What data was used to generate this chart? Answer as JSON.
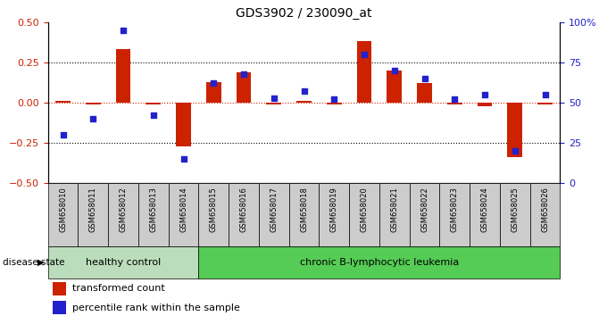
{
  "title": "GDS3902 / 230090_at",
  "samples": [
    "GSM658010",
    "GSM658011",
    "GSM658012",
    "GSM658013",
    "GSM658014",
    "GSM658015",
    "GSM658016",
    "GSM658017",
    "GSM658018",
    "GSM658019",
    "GSM658020",
    "GSM658021",
    "GSM658022",
    "GSM658023",
    "GSM658024",
    "GSM658025",
    "GSM658026"
  ],
  "red_bars": [
    0.01,
    -0.01,
    0.33,
    -0.01,
    -0.27,
    0.13,
    0.19,
    -0.01,
    0.01,
    -0.01,
    0.38,
    0.2,
    0.12,
    -0.01,
    -0.02,
    -0.34,
    -0.01
  ],
  "blue_dots_pct": [
    30,
    40,
    95,
    42,
    15,
    62,
    68,
    53,
    57,
    52,
    80,
    70,
    65,
    52,
    55,
    20,
    55
  ],
  "ylim_left": [
    -0.5,
    0.5
  ],
  "ylim_right": [
    0,
    100
  ],
  "yticks_left": [
    -0.5,
    -0.25,
    0.0,
    0.25,
    0.5
  ],
  "yticks_right": [
    0,
    25,
    50,
    75,
    100
  ],
  "hlines_dotted": [
    -0.25,
    0.25
  ],
  "healthy_count": 5,
  "disease_label_healthy": "healthy control",
  "disease_label_chronic": "chronic B-lymphocytic leukemia",
  "disease_state_label": "disease state",
  "legend_red": "transformed count",
  "legend_blue": "percentile rank within the sample",
  "bar_color": "#cc2200",
  "dot_color": "#2222cc",
  "bg_healthy": "#bbddbb",
  "bg_chronic": "#55cc55",
  "sample_box_color": "#cccccc"
}
